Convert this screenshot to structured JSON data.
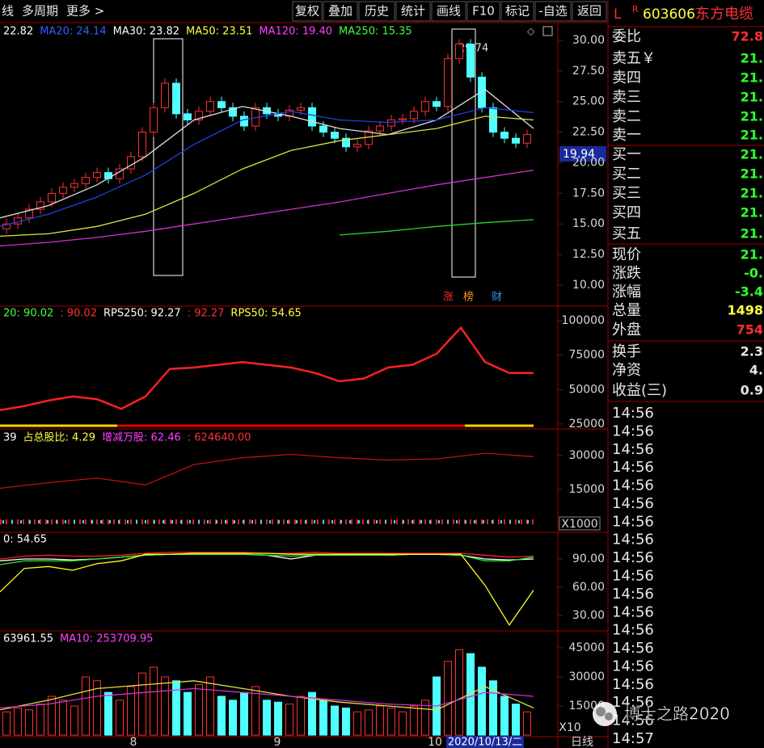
{
  "toolbar": {
    "left": [
      "线",
      "多周期",
      "更多 >"
    ],
    "buttons": [
      "复权",
      "叠加",
      "历史",
      "统计",
      "画线",
      "F10",
      "标记",
      "-自选",
      "返回"
    ]
  },
  "stock": {
    "flag1": "L",
    "flag2": "R",
    "code": "603606",
    "name": "东方电缆"
  },
  "quote": {
    "rows": [
      {
        "label": "委比",
        "value": "72.8"
      },
      {
        "label": "卖五￥",
        "value": "21."
      },
      {
        "label": "卖四",
        "value": "21."
      },
      {
        "label": "卖三",
        "value": "21."
      },
      {
        "label": "卖二",
        "value": "21."
      },
      {
        "label": "卖一",
        "value": "21."
      },
      {
        "label": "买一",
        "value": "21."
      },
      {
        "label": "买二",
        "value": "21."
      },
      {
        "label": "买三",
        "value": "21."
      },
      {
        "label": "买四",
        "value": "21."
      },
      {
        "label": "买五",
        "value": "21."
      },
      {
        "label": "现价",
        "value": "21."
      },
      {
        "label": "涨跌",
        "value": "-0."
      },
      {
        "label": "涨幅",
        "value": "-3.4"
      },
      {
        "label": "总量",
        "value": "1498"
      },
      {
        "label": "外盘",
        "value": "754"
      },
      {
        "label": "换手",
        "value": "2.3"
      },
      {
        "label": "净资",
        "value": "4."
      },
      {
        "label": "收益(三)",
        "value": "0.9"
      }
    ],
    "times": [
      "14:56",
      "14:56",
      "14:56",
      "14:56",
      "14:56",
      "14:56",
      "14:56",
      "14:56",
      "14:56",
      "14:56",
      "14:56",
      "14:56",
      "14:56",
      "14:56",
      "14:56",
      "14:56",
      "14:56",
      "14:56",
      "14:57"
    ]
  },
  "x_labels": [
    "8",
    "9",
    "10"
  ],
  "date_box": "2020/10/13/二",
  "period": "日线",
  "volume_scale": "X10",
  "holdings_scale": "X1000",
  "watermark": "博士之路2020",
  "chart_data": [
    {
      "type": "candlestick",
      "legend": [
        {
          "label": "22.82",
          "color": "#ffffff"
        },
        {
          "label": "MA20: 24.14",
          "color": "#3060ff"
        },
        {
          "label": "MA30: 23.82",
          "color": "#ffffff"
        },
        {
          "label": "MA50: 23.51",
          "color": "#ffff40"
        },
        {
          "label": "MA120: 19.40",
          "color": "#ff40ff"
        },
        {
          "label": "MA250: 15.35",
          "color": "#40ff40"
        }
      ],
      "open": [
        14.6,
        15.0,
        15.5,
        16.2,
        16.8,
        17.5,
        18.0,
        18.3,
        18.8,
        19.2,
        18.7,
        19.5,
        20.5,
        22.5,
        24.5,
        26.5,
        24.0,
        23.5,
        24.2,
        25.0,
        24.5,
        23.8,
        23.0,
        24.5,
        24.0,
        23.8,
        24.3,
        24.5,
        23.0,
        22.5,
        22.0,
        21.3,
        21.5,
        22.6,
        23.0,
        23.5,
        23.6,
        24.2,
        25.0,
        24.6,
        28.5,
        29.7,
        27.0,
        24.5,
        22.5,
        22.0,
        21.6
      ],
      "high": [
        15.4,
        15.9,
        16.6,
        17.2,
        17.9,
        18.4,
        18.7,
        19.2,
        19.6,
        19.6,
        19.9,
        20.9,
        22.9,
        24.9,
        26.9,
        26.9,
        24.4,
        24.6,
        25.4,
        25.4,
        24.9,
        24.2,
        24.9,
        24.9,
        24.4,
        24.7,
        24.9,
        24.9,
        23.4,
        22.9,
        22.4,
        21.9,
        23.0,
        23.4,
        23.9,
        24.0,
        24.6,
        25.4,
        25.4,
        28.9,
        30.1,
        30.1,
        27.4,
        24.9,
        22.9,
        22.4,
        22.7
      ],
      "low": [
        14.2,
        14.6,
        15.1,
        15.8,
        16.4,
        17.1,
        17.6,
        17.9,
        18.4,
        18.3,
        18.3,
        19.1,
        20.1,
        22.1,
        24.1,
        23.6,
        23.1,
        23.1,
        23.8,
        24.1,
        23.4,
        22.6,
        22.6,
        23.6,
        23.4,
        23.4,
        23.9,
        22.6,
        22.1,
        21.6,
        20.9,
        20.9,
        21.1,
        22.2,
        22.6,
        23.1,
        23.2,
        23.8,
        24.2,
        24.2,
        28.1,
        26.6,
        24.1,
        22.1,
        21.6,
        21.2,
        21.2
      ],
      "close": [
        15.0,
        15.5,
        16.2,
        16.8,
        17.5,
        18.0,
        18.3,
        18.8,
        19.2,
        18.7,
        19.5,
        20.5,
        22.5,
        24.5,
        26.5,
        24.0,
        23.5,
        24.2,
        25.0,
        24.5,
        23.8,
        23.0,
        24.5,
        24.0,
        23.8,
        24.3,
        24.5,
        23.0,
        22.5,
        22.0,
        21.3,
        21.5,
        22.6,
        23.0,
        23.5,
        23.6,
        24.2,
        25.0,
        24.6,
        28.5,
        29.7,
        27.0,
        24.5,
        22.5,
        22.0,
        21.6,
        22.3
      ],
      "lines": [
        {
          "color": "#dddddd",
          "values": [
            15.5,
            16.5,
            18.2,
            20.5,
            23.5,
            24.6,
            23.8,
            22.8,
            22.3,
            23.5,
            26.0,
            22.8
          ]
        },
        {
          "color": "#2040e0",
          "values": [
            14.8,
            15.8,
            17.2,
            19.0,
            21.5,
            23.5,
            24.2,
            23.5,
            23.3,
            23.5,
            24.5,
            24.1
          ]
        },
        {
          "color": "#e0e040",
          "values": [
            14.0,
            14.2,
            14.8,
            15.8,
            17.5,
            19.5,
            21.0,
            21.8,
            22.3,
            22.8,
            23.8,
            23.5
          ]
        },
        {
          "color": "#d030d0",
          "values": [
            13.2,
            13.5,
            13.9,
            14.4,
            15.0,
            15.6,
            16.2,
            16.8,
            17.5,
            18.2,
            18.8,
            19.4
          ]
        },
        {
          "color": "#30d030",
          "values": [
            null,
            null,
            null,
            null,
            null,
            null,
            null,
            14.1,
            14.4,
            14.8,
            15.1,
            15.35
          ]
        }
      ],
      "ylim": [
        8.35,
        31.45
      ],
      "yticks": [
        {
          "value": 30,
          "label": "30.00"
        },
        {
          "value": 27.5,
          "label": "27.50"
        },
        {
          "value": 25,
          "label": "25.00"
        },
        {
          "value": 22.5,
          "label": "22.50"
        },
        {
          "value": 20,
          "label": "20.00"
        },
        {
          "value": 17.5,
          "label": "17.50"
        },
        {
          "value": 15,
          "label": "15.00"
        },
        {
          "value": 12.5,
          "label": "12.50"
        },
        {
          "value": 10,
          "label": "10.00"
        }
      ],
      "peak_label": "29.74",
      "price_tag": "19.94",
      "markers": [
        {
          "label": "涨",
          "color": "#ff3030"
        },
        {
          "label": "榜",
          "color": "#ff9020"
        },
        {
          "label": "财",
          "color": "#4090ff"
        }
      ]
    },
    {
      "type": "line",
      "legend": [
        {
          "label": "20: 90.02",
          "color": "#40ff40"
        },
        {
          "label": ": 90.02",
          "color": "#ff3030"
        },
        {
          "label": "RPS250: 92.27",
          "color": "#ffffff"
        },
        {
          "label": ": 92.27",
          "color": "#ff3030"
        },
        {
          "label": "RPS50: 54.65",
          "color": "#ffff40"
        }
      ],
      "lines": [
        {
          "color": "#ff2020",
          "values": [
            35000,
            38000,
            42000,
            45000,
            43000,
            36000,
            45000,
            65000,
            66000,
            68000,
            70000,
            68000,
            66000,
            62000,
            56000,
            58000,
            66000,
            68000,
            76000,
            95000,
            70000,
            62000,
            62000
          ]
        }
      ],
      "ylim": [
        22000,
        110000
      ],
      "yticks": [
        100000,
        75000,
        50000,
        25000
      ]
    },
    {
      "type": "line",
      "legend": [
        {
          "label": "39",
          "color": "#ffffff"
        },
        {
          "label": "占总股比: 4.29",
          "color": "#ffff40"
        },
        {
          "label": "增减万股: 62.46",
          "color": "#ff40ff"
        },
        {
          "label": ": 624640.00",
          "color": "#ff3030"
        }
      ],
      "lines": [
        {
          "color": "#c01010",
          "values": [
            15500,
            18000,
            20000,
            17000,
            26000,
            29000,
            30500,
            29000,
            28000,
            28500,
            31000,
            29500
          ]
        }
      ],
      "ylim": [
        -3600,
        41400
      ],
      "yticks": [
        30000,
        15000
      ]
    },
    {
      "type": "line",
      "legend": [
        {
          "label": "0: 54.65",
          "color": "#ffffff"
        }
      ],
      "lines": [
        {
          "color": "#ffffff",
          "values": [
            88,
            90,
            90,
            89,
            90,
            92,
            94,
            95,
            95,
            95,
            95,
            94,
            90,
            94,
            94,
            94,
            94,
            95,
            95,
            94,
            90,
            89,
            90
          ]
        },
        {
          "color": "#30e030",
          "values": [
            84,
            88,
            88,
            88,
            90,
            92,
            94,
            95,
            95,
            95,
            95,
            94,
            93,
            94,
            94,
            94,
            94,
            95,
            95,
            94,
            88,
            88,
            92
          ]
        },
        {
          "color": "#ff2020",
          "values": [
            90,
            93,
            94,
            93,
            93,
            94,
            96,
            97,
            97,
            97,
            97,
            96,
            96,
            97,
            96,
            96,
            96,
            96,
            96,
            96,
            94,
            92,
            93
          ]
        },
        {
          "color": "#ffff20",
          "values": [
            55,
            80,
            82,
            78,
            85,
            88,
            95,
            95,
            96,
            96,
            96,
            96,
            95,
            95,
            95,
            95,
            95,
            95,
            95,
            95,
            62,
            20,
            57
          ]
        }
      ],
      "ylim": [
        12.9,
        117.4
      ],
      "yticks": [
        {
          "value": 90,
          "label": "90.00"
        },
        {
          "value": 60,
          "label": "60.00"
        },
        {
          "value": 30,
          "label": "30.00"
        }
      ]
    },
    {
      "type": "volume",
      "legend": [
        {
          "label": "63961.55",
          "color": "#ffffff"
        },
        {
          "label": "MA10: 253709.95",
          "color": "#ff40ff"
        }
      ],
      "values": [
        12000,
        14000,
        13000,
        16000,
        20000,
        18000,
        15000,
        30000,
        28000,
        22000,
        18000,
        25000,
        32000,
        35000,
        30000,
        28000,
        22000,
        26000,
        30000,
        20000,
        18000,
        22000,
        25000,
        18000,
        17000,
        16000,
        20000,
        22000,
        18000,
        15000,
        14000,
        12000,
        13000,
        15000,
        14000,
        12000,
        15000,
        18000,
        30000,
        38000,
        44000,
        42000,
        35000,
        28000,
        20000,
        16000,
        12000
      ],
      "lines": [
        {
          "color": "#e0e040",
          "values": [
            13000,
            18000,
            24000,
            26000,
            28000,
            24000,
            20000,
            17000,
            15000,
            13000,
            25000,
            14000
          ]
        },
        {
          "color": "#d030d0",
          "values": [
            14000,
            16000,
            20000,
            22000,
            24000,
            22000,
            20000,
            18000,
            16000,
            15000,
            22000,
            20000
          ]
        }
      ],
      "ylim": [
        -800,
        53300
      ],
      "yticks": [
        45000,
        30000,
        15000
      ]
    }
  ]
}
